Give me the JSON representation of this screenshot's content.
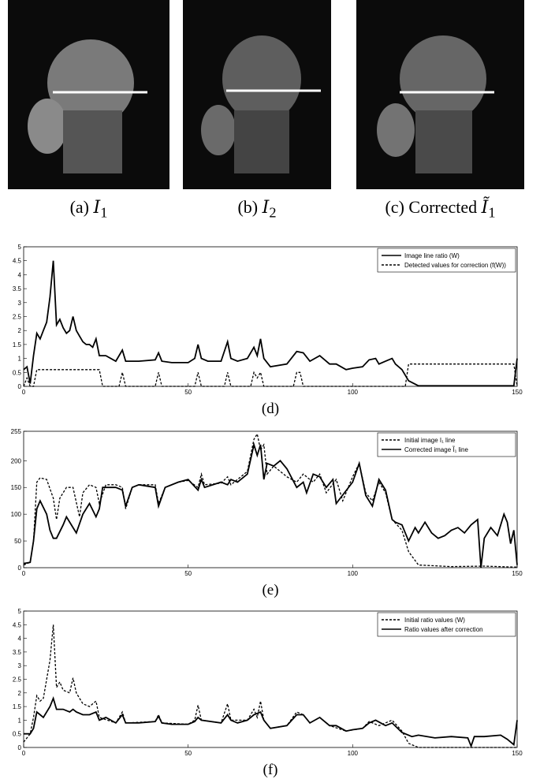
{
  "images": [
    {
      "label": "(a)",
      "symbol": "I",
      "subscript": "1"
    },
    {
      "label": "(b)",
      "symbol": "I",
      "subscript": "2"
    },
    {
      "label": "(c) Corrected",
      "symbol": "Ĩ",
      "subscript": "1"
    }
  ],
  "chart_data": [
    {
      "type": "line",
      "caption": "(d)",
      "xlim": [
        0,
        150
      ],
      "xticks": [
        0,
        50,
        100,
        150
      ],
      "ylim": [
        0,
        5
      ],
      "yticks": [
        0,
        0.5,
        1,
        1.5,
        2,
        2.5,
        3,
        3.5,
        4,
        4.5,
        5
      ],
      "legend": "upper right",
      "series": [
        {
          "name": "Image line ratio (W)",
          "color": "#000000",
          "dash": "solid",
          "x": [
            0,
            1,
            2,
            3,
            4,
            5,
            6,
            7,
            8,
            9,
            10,
            11,
            12,
            13,
            14,
            15,
            16,
            17,
            18,
            19,
            20,
            21,
            22,
            23,
            25,
            28,
            30,
            31,
            35,
            40,
            41,
            42,
            45,
            50,
            52,
            53,
            54,
            56,
            60,
            62,
            63,
            65,
            68,
            70,
            71,
            72,
            73,
            75,
            80,
            83,
            85,
            87,
            90,
            93,
            95,
            98,
            100,
            103,
            105,
            107,
            108,
            110,
            112,
            113,
            115,
            117,
            120,
            130,
            140,
            149,
            150
          ],
          "values": [
            0.6,
            0.7,
            0.1,
            1.1,
            1.9,
            1.7,
            2.0,
            2.3,
            3.2,
            4.5,
            2.2,
            2.4,
            2.1,
            1.9,
            2.0,
            2.5,
            2.0,
            1.8,
            1.6,
            1.5,
            1.5,
            1.4,
            1.7,
            1.1,
            1.1,
            0.9,
            1.3,
            0.9,
            0.9,
            0.95,
            1.2,
            0.9,
            0.85,
            0.85,
            1.0,
            1.5,
            1.0,
            0.9,
            0.9,
            1.6,
            1.0,
            0.9,
            1.0,
            1.4,
            1.1,
            1.7,
            1.0,
            0.7,
            0.8,
            1.25,
            1.2,
            0.9,
            1.1,
            0.8,
            0.8,
            0.6,
            0.65,
            0.7,
            0.95,
            1.0,
            0.8,
            0.9,
            1.0,
            0.8,
            0.6,
            0.2,
            0.02,
            0.02,
            0.02,
            0.02,
            1.0
          ]
        },
        {
          "name": "Detected values for correction (f(W))",
          "color": "#000000",
          "dash": "dashed",
          "x": [
            0,
            1,
            2,
            3,
            4,
            23,
            24,
            29,
            30,
            31,
            40,
            41,
            42,
            52,
            53,
            54,
            61,
            62,
            63,
            69,
            70,
            71,
            72,
            73,
            82,
            83,
            84,
            85,
            116,
            117,
            149,
            150
          ],
          "values": [
            0,
            0.3,
            0,
            0,
            0.6,
            0.6,
            0,
            0,
            0.5,
            0,
            0,
            0.5,
            0,
            0,
            0.5,
            0,
            0,
            0.5,
            0,
            0,
            0.5,
            0.3,
            0.5,
            0,
            0,
            0.5,
            0.5,
            0,
            0,
            0.8,
            0.8,
            0
          ]
        }
      ]
    },
    {
      "type": "line",
      "caption": "(e)",
      "xlim": [
        0,
        150
      ],
      "xticks": [
        0,
        50,
        100,
        150
      ],
      "ylim": [
        0,
        255
      ],
      "yticks": [
        0,
        50,
        100,
        150,
        200,
        255
      ],
      "legend": "upper right",
      "series": [
        {
          "name": "Initial image I₁ line",
          "color": "#000000",
          "dash": "dashed",
          "x": [
            0,
            2,
            3,
            4,
            5,
            7,
            9,
            10,
            11,
            13,
            15,
            17,
            18,
            20,
            22,
            23,
            25,
            28,
            30,
            31,
            33,
            35,
            40,
            41,
            43,
            47,
            50,
            53,
            54,
            55,
            60,
            62,
            63,
            65,
            68,
            70,
            71,
            72,
            73,
            74,
            76,
            80,
            83,
            85,
            88,
            90,
            92,
            95,
            97,
            100,
            102,
            104,
            106,
            108,
            110,
            112,
            115,
            117,
            120,
            130,
            140,
            150
          ],
          "values": [
            5,
            10,
            50,
            160,
            168,
            165,
            130,
            90,
            130,
            150,
            150,
            95,
            140,
            155,
            150,
            120,
            155,
            155,
            150,
            110,
            150,
            155,
            155,
            120,
            150,
            160,
            163,
            150,
            175,
            155,
            158,
            170,
            155,
            165,
            180,
            240,
            250,
            220,
            230,
            175,
            190,
            170,
            160,
            175,
            160,
            175,
            140,
            165,
            125,
            170,
            195,
            140,
            125,
            160,
            140,
            90,
            70,
            30,
            5,
            2,
            3,
            1
          ]
        },
        {
          "name": "Corrected image Ĩ₁ line",
          "color": "#000000",
          "dash": "solid",
          "x": [
            0,
            2,
            3,
            4,
            5,
            7,
            8,
            9,
            10,
            12,
            13,
            15,
            16,
            18,
            20,
            22,
            23,
            24,
            28,
            30,
            31,
            33,
            35,
            40,
            41,
            43,
            47,
            50,
            53,
            54,
            55,
            60,
            62,
            63,
            65,
            68,
            70,
            71,
            72,
            73,
            74,
            76,
            78,
            80,
            83,
            85,
            86,
            88,
            90,
            92,
            94,
            95,
            100,
            102,
            104,
            106,
            108,
            110,
            112,
            113,
            115,
            117,
            119,
            120,
            122,
            124,
            126,
            128,
            130,
            132,
            134,
            136,
            138,
            139,
            140,
            142,
            144,
            146,
            147,
            148,
            149,
            150
          ],
          "values": [
            8,
            10,
            50,
            110,
            125,
            100,
            70,
            55,
            55,
            80,
            95,
            75,
            65,
            100,
            120,
            95,
            110,
            150,
            150,
            145,
            115,
            150,
            155,
            150,
            115,
            150,
            160,
            165,
            145,
            165,
            150,
            160,
            155,
            165,
            160,
            175,
            230,
            210,
            230,
            165,
            195,
            190,
            200,
            185,
            150,
            160,
            140,
            175,
            170,
            150,
            165,
            120,
            160,
            195,
            135,
            115,
            165,
            145,
            90,
            85,
            80,
            50,
            75,
            65,
            85,
            65,
            55,
            60,
            70,
            75,
            65,
            80,
            90,
            0,
            55,
            75,
            60,
            100,
            85,
            45,
            70,
            5
          ]
        }
      ]
    },
    {
      "type": "line",
      "caption": "(f)",
      "xlim": [
        0,
        150
      ],
      "xticks": [
        0,
        50,
        100,
        150
      ],
      "ylim": [
        0,
        5
      ],
      "yticks": [
        0,
        0.5,
        1,
        1.5,
        2,
        2.5,
        3,
        3.5,
        4,
        4.5,
        5
      ],
      "legend": "upper right",
      "series": [
        {
          "name": "Initial ratio values (W)",
          "color": "#000000",
          "dash": "dashed",
          "x": [
            0,
            2,
            3,
            4,
            5,
            6,
            8,
            9,
            10,
            11,
            12,
            14,
            15,
            16,
            18,
            20,
            22,
            23,
            28,
            30,
            31,
            40,
            41,
            42,
            50,
            52,
            53,
            54,
            60,
            62,
            63,
            68,
            70,
            71,
            72,
            73,
            75,
            80,
            83,
            85,
            87,
            90,
            93,
            98,
            103,
            105,
            108,
            112,
            115,
            117,
            120,
            150
          ],
          "values": [
            0.2,
            0.5,
            1.1,
            1.9,
            1.7,
            1.8,
            3.2,
            4.5,
            2.2,
            2.4,
            2.1,
            2.0,
            2.55,
            2.0,
            1.6,
            1.5,
            1.7,
            1.1,
            0.9,
            1.3,
            0.9,
            0.95,
            1.2,
            0.9,
            0.85,
            1.0,
            1.55,
            1.0,
            0.9,
            1.6,
            1.0,
            1.0,
            1.4,
            1.1,
            1.7,
            1.0,
            0.7,
            0.8,
            1.3,
            1.2,
            0.9,
            1.1,
            0.8,
            0.6,
            0.7,
            0.95,
            0.8,
            1.0,
            0.6,
            0.15,
            0,
            0
          ]
        },
        {
          "name": "Ratio values after correction",
          "color": "#000000",
          "dash": "solid",
          "x": [
            0,
            2,
            3,
            4,
            5,
            6,
            8,
            9,
            10,
            12,
            14,
            15,
            16,
            18,
            20,
            22,
            23,
            25,
            28,
            30,
            31,
            35,
            40,
            41,
            42,
            45,
            50,
            52,
            53,
            54,
            60,
            62,
            63,
            65,
            68,
            70,
            72,
            73,
            75,
            80,
            83,
            85,
            87,
            90,
            93,
            95,
            98,
            100,
            103,
            105,
            107,
            110,
            112,
            115,
            118,
            120,
            125,
            130,
            135,
            136,
            137,
            140,
            145,
            147,
            149,
            150
          ],
          "values": [
            0.5,
            0.5,
            0.7,
            1.3,
            1.2,
            1.1,
            1.5,
            1.8,
            1.4,
            1.4,
            1.3,
            1.4,
            1.3,
            1.2,
            1.2,
            1.3,
            1.0,
            1.1,
            0.9,
            1.2,
            0.9,
            0.9,
            0.95,
            1.15,
            0.9,
            0.85,
            0.85,
            0.95,
            1.1,
            1.0,
            0.9,
            1.2,
            1.0,
            0.9,
            1.0,
            1.2,
            1.3,
            1.0,
            0.7,
            0.8,
            1.2,
            1.2,
            0.9,
            1.1,
            0.8,
            0.8,
            0.6,
            0.65,
            0.7,
            0.9,
            1.0,
            0.8,
            0.9,
            0.55,
            0.4,
            0.45,
            0.35,
            0.4,
            0.35,
            0.05,
            0.4,
            0.4,
            0.45,
            0.3,
            0.1,
            1.0
          ]
        }
      ]
    }
  ]
}
